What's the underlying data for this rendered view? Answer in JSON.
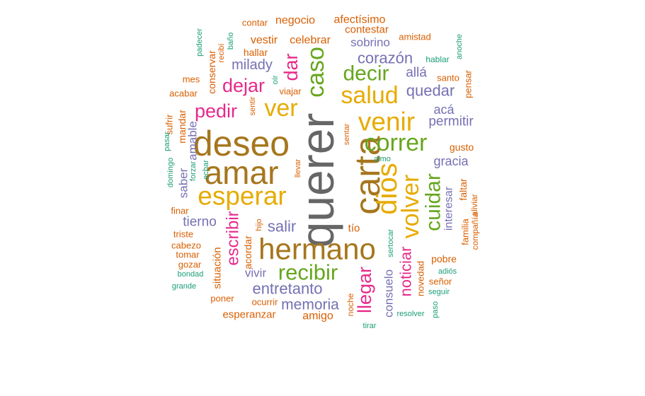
{
  "palette": {
    "teal": "#1b9e77",
    "orange": "#d95f02",
    "purple": "#7570b3",
    "magenta": "#e7298a",
    "green": "#66a61e",
    "gold": "#e6ab02",
    "brown": "#a6761d",
    "gray": "#666666"
  },
  "words": [
    {
      "text": "querer",
      "color": "gray"
    },
    {
      "text": "carta",
      "color": "brown"
    },
    {
      "text": "deseo",
      "color": "brown"
    },
    {
      "text": "amar",
      "color": "brown"
    },
    {
      "text": "hermano",
      "color": "brown"
    },
    {
      "text": "esperar",
      "color": "gold"
    },
    {
      "text": "venir",
      "color": "gold"
    },
    {
      "text": "dios",
      "color": "gold"
    },
    {
      "text": "caso",
      "color": "green"
    },
    {
      "text": "salud",
      "color": "gold"
    },
    {
      "text": "ver",
      "color": "gold"
    },
    {
      "text": "correr",
      "color": "green"
    },
    {
      "text": "volver",
      "color": "gold"
    },
    {
      "text": "cuidar",
      "color": "green"
    },
    {
      "text": "decir",
      "color": "green"
    },
    {
      "text": "recibir",
      "color": "green"
    },
    {
      "text": "pedir",
      "color": "magenta"
    },
    {
      "text": "dejar",
      "color": "magenta"
    },
    {
      "text": "dar",
      "color": "magenta"
    },
    {
      "text": "escribir",
      "color": "magenta"
    },
    {
      "text": "llegar",
      "color": "magenta"
    },
    {
      "text": "noticiar",
      "color": "magenta"
    },
    {
      "text": "corazón",
      "color": "purple"
    },
    {
      "text": "quedar",
      "color": "purple"
    },
    {
      "text": "permitir",
      "color": "purple"
    },
    {
      "text": "entretanto",
      "color": "purple"
    },
    {
      "text": "memoria",
      "color": "purple"
    },
    {
      "text": "salir",
      "color": "purple"
    },
    {
      "text": "tierno",
      "color": "purple"
    },
    {
      "text": "milady",
      "color": "purple"
    },
    {
      "text": "sobrino",
      "color": "purple"
    },
    {
      "text": "allá",
      "color": "purple"
    },
    {
      "text": "acá",
      "color": "purple"
    },
    {
      "text": "gracia",
      "color": "purple"
    },
    {
      "text": "interesar",
      "color": "purple"
    },
    {
      "text": "consuelo",
      "color": "purple"
    },
    {
      "text": "vivir",
      "color": "purple"
    },
    {
      "text": "saber",
      "color": "purple"
    },
    {
      "text": "amable",
      "color": "purple"
    },
    {
      "text": "negocio",
      "color": "orange"
    },
    {
      "text": "afectísimo",
      "color": "orange"
    },
    {
      "text": "contestar",
      "color": "orange"
    },
    {
      "text": "celebrar",
      "color": "orange"
    },
    {
      "text": "vestir",
      "color": "orange"
    },
    {
      "text": "hallar",
      "color": "orange"
    },
    {
      "text": "contar",
      "color": "orange"
    },
    {
      "text": "amistad",
      "color": "orange"
    },
    {
      "text": "mes",
      "color": "orange"
    },
    {
      "text": "acabar",
      "color": "orange"
    },
    {
      "text": "mandar",
      "color": "orange"
    },
    {
      "text": "sufrir",
      "color": "orange"
    },
    {
      "text": "conservar",
      "color": "orange"
    },
    {
      "text": "viajar",
      "color": "orange"
    },
    {
      "text": "santo",
      "color": "orange"
    },
    {
      "text": "pensar",
      "color": "orange"
    },
    {
      "text": "gusto",
      "color": "orange"
    },
    {
      "text": "faltar",
      "color": "orange"
    },
    {
      "text": "familia",
      "color": "orange"
    },
    {
      "text": "compañía",
      "color": "orange"
    },
    {
      "text": "aliviar",
      "color": "orange"
    },
    {
      "text": "pobre",
      "color": "orange"
    },
    {
      "text": "señor",
      "color": "orange"
    },
    {
      "text": "novedad",
      "color": "orange"
    },
    {
      "text": "tío",
      "color": "orange"
    },
    {
      "text": "situación",
      "color": "orange"
    },
    {
      "text": "acordar",
      "color": "orange"
    },
    {
      "text": "cabezo",
      "color": "orange"
    },
    {
      "text": "tomar",
      "color": "orange"
    },
    {
      "text": "gozar",
      "color": "orange"
    },
    {
      "text": "triste",
      "color": "orange"
    },
    {
      "text": "finar",
      "color": "orange"
    },
    {
      "text": "poner",
      "color": "orange"
    },
    {
      "text": "ocurrir",
      "color": "orange"
    },
    {
      "text": "esperanzar",
      "color": "orange"
    },
    {
      "text": "amigo",
      "color": "orange"
    },
    {
      "text": "noche",
      "color": "orange"
    },
    {
      "text": "llevar",
      "color": "orange"
    },
    {
      "text": "sentar",
      "color": "orange"
    },
    {
      "text": "sentir",
      "color": "orange"
    },
    {
      "text": "recibí",
      "color": "orange"
    },
    {
      "text": "hijo",
      "color": "orange"
    },
    {
      "text": "padecer",
      "color": "teal"
    },
    {
      "text": "baño",
      "color": "teal"
    },
    {
      "text": "hablar",
      "color": "teal"
    },
    {
      "text": "anoche",
      "color": "teal"
    },
    {
      "text": "oír",
      "color": "teal"
    },
    {
      "text": "almo",
      "color": "teal"
    },
    {
      "text": "domingo",
      "color": "teal"
    },
    {
      "text": "pasar",
      "color": "teal"
    },
    {
      "text": "forzar",
      "color": "teal"
    },
    {
      "text": "echar",
      "color": "teal"
    },
    {
      "text": "bondad",
      "color": "teal"
    },
    {
      "text": "grande",
      "color": "teal"
    },
    {
      "text": "sertocar",
      "color": "teal"
    },
    {
      "text": "adiós",
      "color": "teal"
    },
    {
      "text": "seguir",
      "color": "teal"
    },
    {
      "text": "resolver",
      "color": "teal"
    },
    {
      "text": "paso",
      "color": "teal"
    },
    {
      "text": "tirar",
      "color": "teal"
    }
  ]
}
